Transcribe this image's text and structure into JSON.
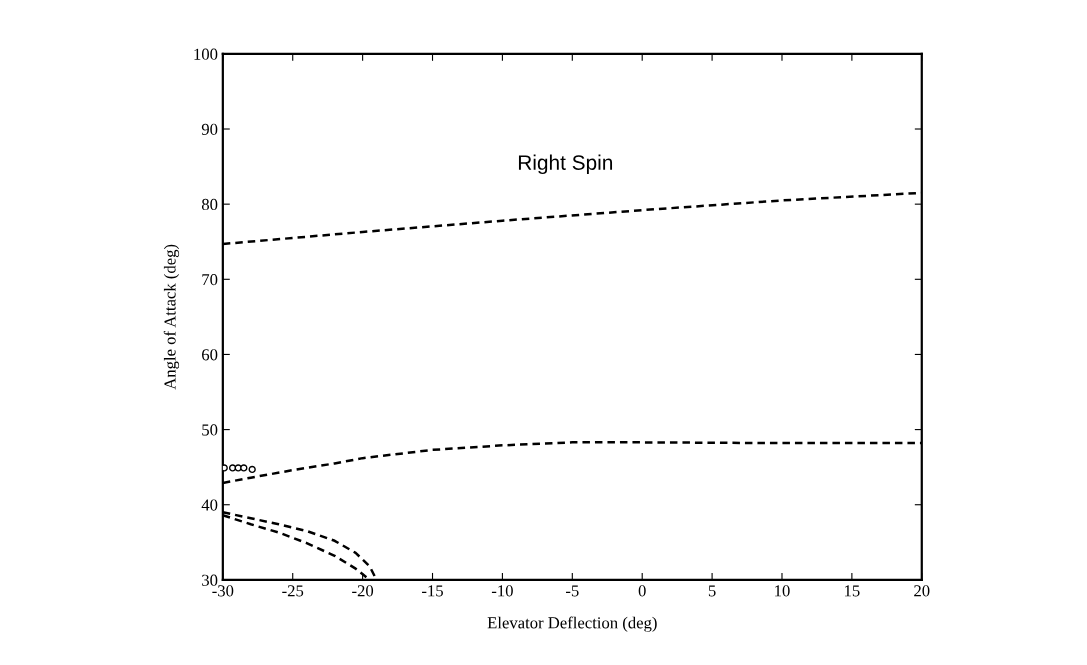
{
  "chart_data": {
    "type": "line",
    "xlabel": "Elevator Deflection (deg)",
    "ylabel": "Angle of Attack (deg)",
    "annotations": [
      "Right Spin"
    ],
    "xlim": [
      -30,
      20
    ],
    "ylim": [
      30,
      100
    ],
    "xticks": [
      -30,
      -25,
      -20,
      -15,
      -10,
      -5,
      0,
      5,
      10,
      15,
      20
    ],
    "yticks": [
      30,
      40,
      50,
      60,
      70,
      80,
      90,
      100
    ],
    "grid": false,
    "legend": false,
    "line_style": "dashed",
    "series": [
      {
        "color": "#000000",
        "x": [
          -30,
          -20,
          -10,
          0,
          10,
          20
        ],
        "values": [
          74.7,
          76.3,
          77.8,
          79.2,
          80.5,
          81.5
        ]
      },
      {
        "color": "#000000",
        "x": [
          -30,
          -28,
          -25,
          -22,
          -20,
          -15,
          -10,
          -5,
          0,
          10,
          20
        ],
        "values": [
          42.9,
          43.6,
          44.6,
          45.5,
          46.2,
          47.3,
          47.9,
          48.3,
          48.3,
          48.2,
          48.2
        ]
      },
      {
        "color": "#000000",
        "x": [
          -30,
          -28,
          -26,
          -24,
          -22,
          -20.5,
          -19.5,
          -19.0
        ],
        "values": [
          39.0,
          38.2,
          37.4,
          36.5,
          35.2,
          33.6,
          31.8,
          30.0
        ]
      },
      {
        "color": "#000000",
        "x": [
          -30,
          -28,
          -26,
          -24,
          -22,
          -20.5,
          -19.5
        ],
        "values": [
          38.6,
          37.4,
          36.3,
          34.9,
          33.2,
          31.5,
          30.0
        ]
      },
      {
        "type": "scatter",
        "marker": "circle",
        "color": "#000000",
        "x": [
          -29.9,
          -29.3,
          -28.9,
          -28.5,
          -27.9
        ],
        "values": [
          44.9,
          44.9,
          44.9,
          44.9,
          44.7
        ]
      }
    ]
  }
}
